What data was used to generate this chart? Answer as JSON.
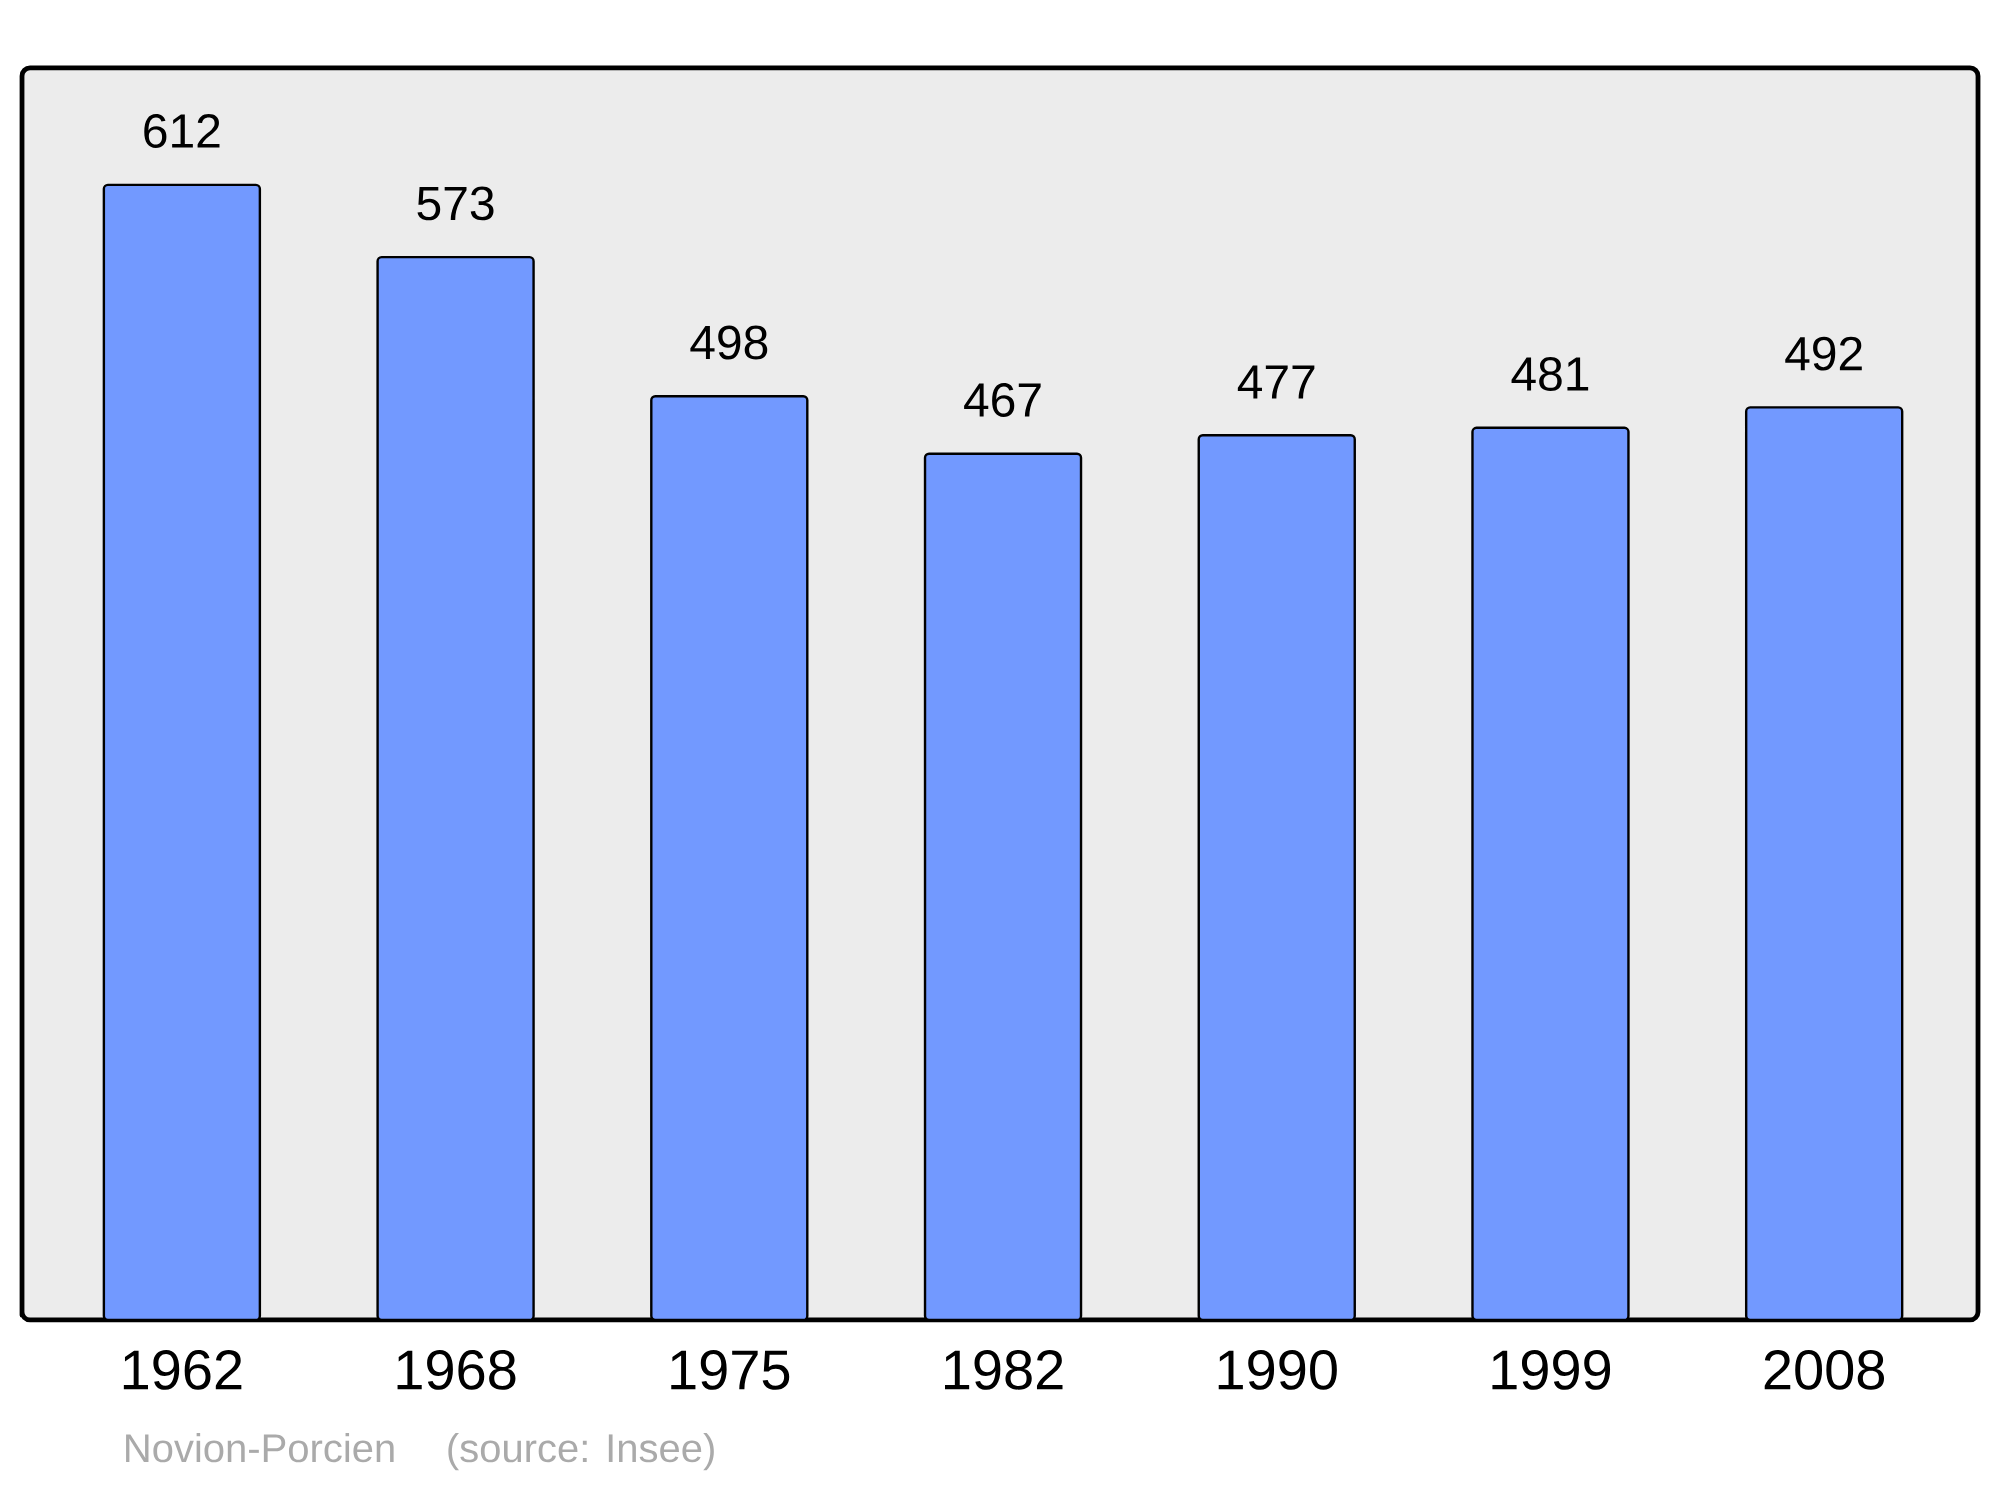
{
  "chart_data": {
    "type": "bar",
    "categories": [
      "1962",
      "1968",
      "1975",
      "1982",
      "1990",
      "1999",
      "2008"
    ],
    "values": [
      612,
      573,
      498,
      467,
      477,
      481,
      492
    ],
    "color": "#7299ff",
    "ylim": [
      0,
      675
    ],
    "tick_labels": "x",
    "data_labels": true,
    "annotations": [
      "Novion-Porcien",
      "(source: Insee)"
    ]
  }
}
